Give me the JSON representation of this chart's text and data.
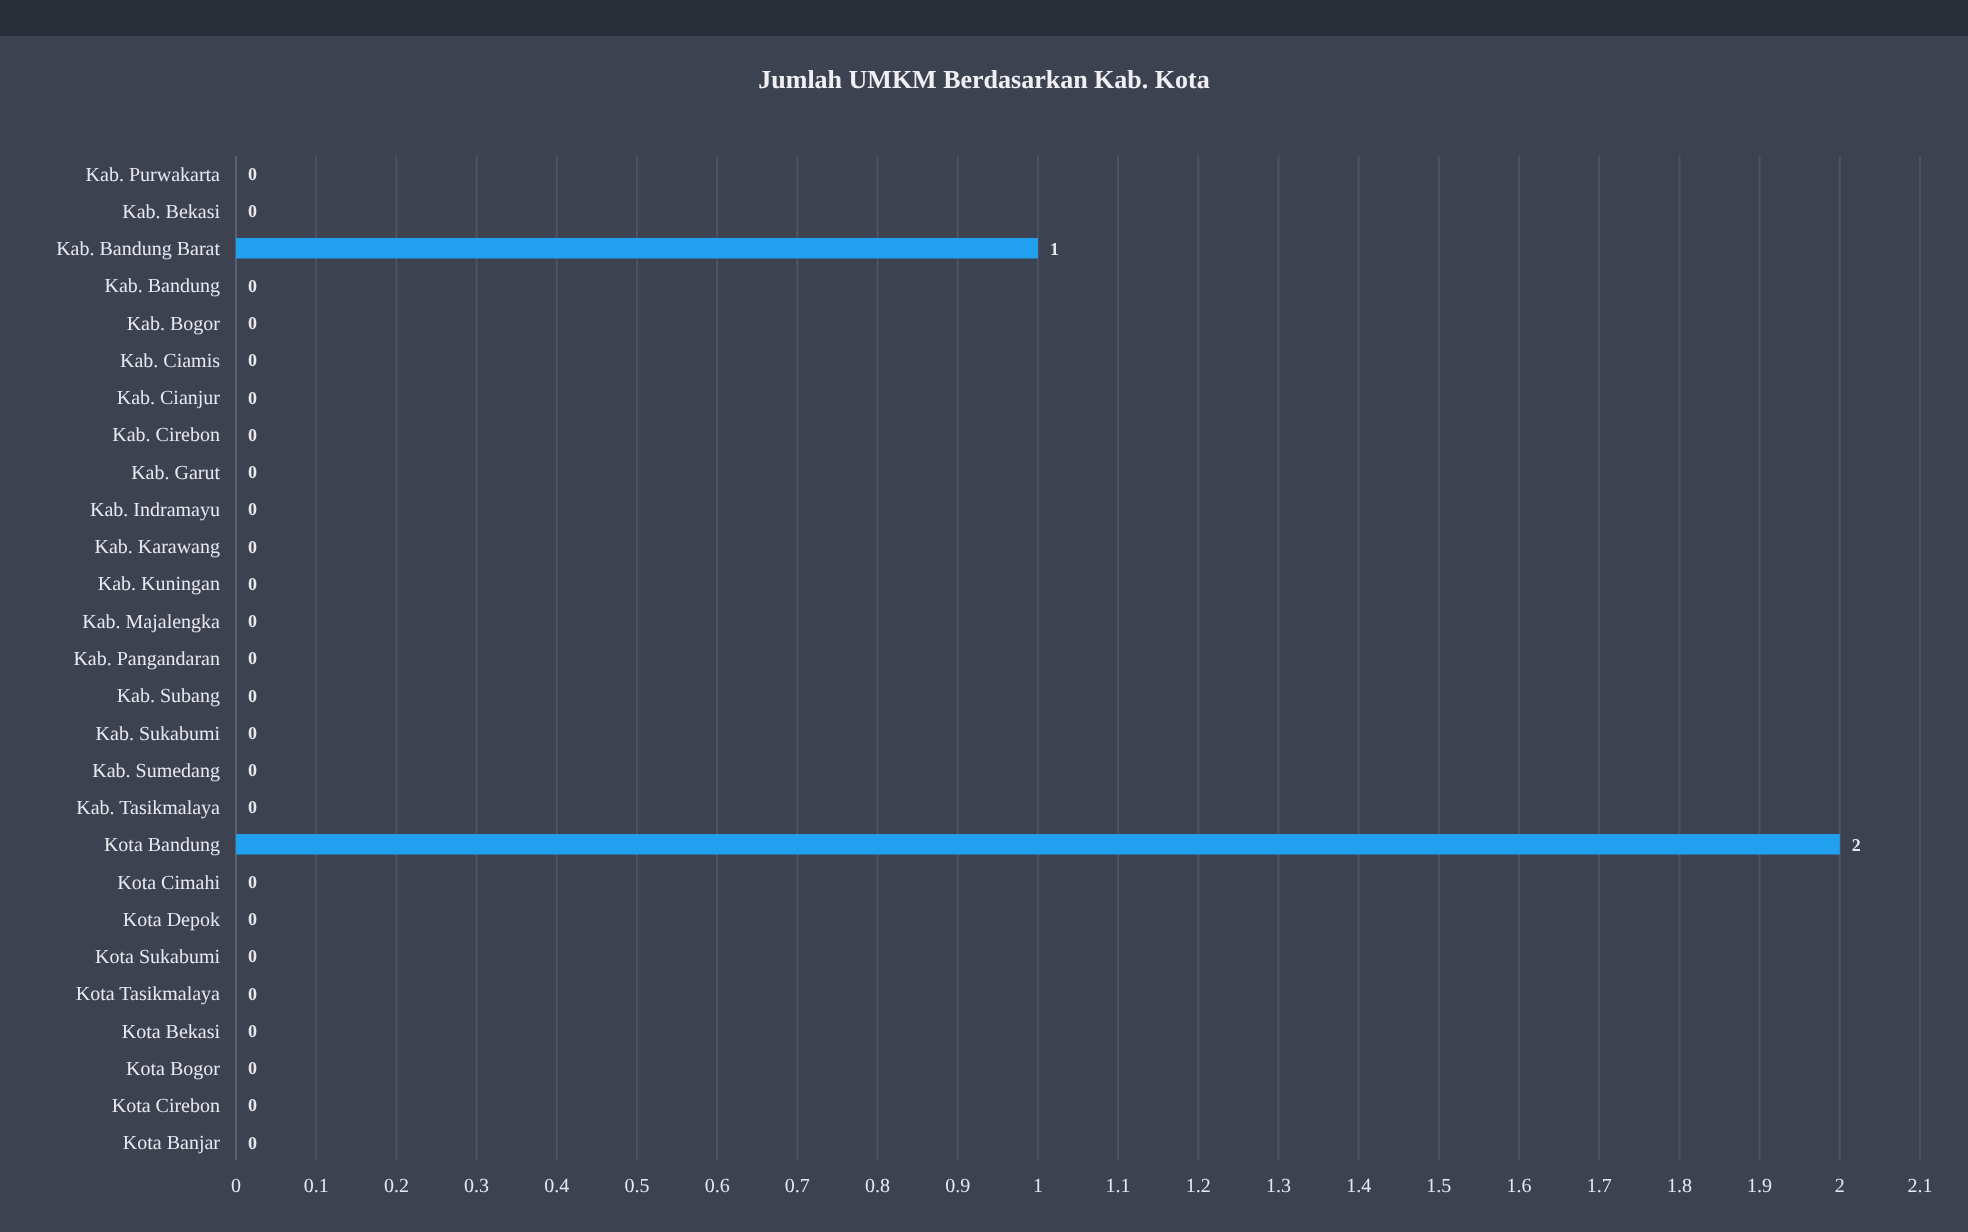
{
  "chart_data": {
    "type": "bar",
    "orientation": "horizontal",
    "title": "Jumlah UMKM Berdasarkan Kab. Kota",
    "categories": [
      "Kab. Purwakarta",
      "Kab. Bekasi",
      "Kab. Bandung Barat",
      "Kab. Bandung",
      "Kab. Bogor",
      "Kab. Ciamis",
      "Kab. Cianjur",
      "Kab. Cirebon",
      "Kab. Garut",
      "Kab. Indramayu",
      "Kab. Karawang",
      "Kab. Kuningan",
      "Kab. Majalengka",
      "Kab. Pangandaran",
      "Kab. Subang",
      "Kab. Sukabumi",
      "Kab. Sumedang",
      "Kab. Tasikmalaya",
      "Kota Bandung",
      "Kota Cimahi",
      "Kota Depok",
      "Kota Sukabumi",
      "Kota Tasikmalaya",
      "Kota Bekasi",
      "Kota Bogor",
      "Kota Cirebon",
      "Kota Banjar"
    ],
    "values": [
      0,
      0,
      1,
      0,
      0,
      0,
      0,
      0,
      0,
      0,
      0,
      0,
      0,
      0,
      0,
      0,
      0,
      0,
      2,
      0,
      0,
      0,
      0,
      0,
      0,
      0,
      0
    ],
    "color": "#22a0f0",
    "xlim": [
      0,
      2.1
    ],
    "xticks": [
      0,
      0.1,
      0.2,
      0.3,
      0.4,
      0.5,
      0.6,
      0.7,
      0.8,
      0.9,
      1,
      1.1,
      1.2,
      1.3,
      1.4,
      1.5,
      1.6,
      1.7,
      1.8,
      1.9,
      2,
      2.1
    ],
    "grid": "x",
    "data_labels": true
  }
}
